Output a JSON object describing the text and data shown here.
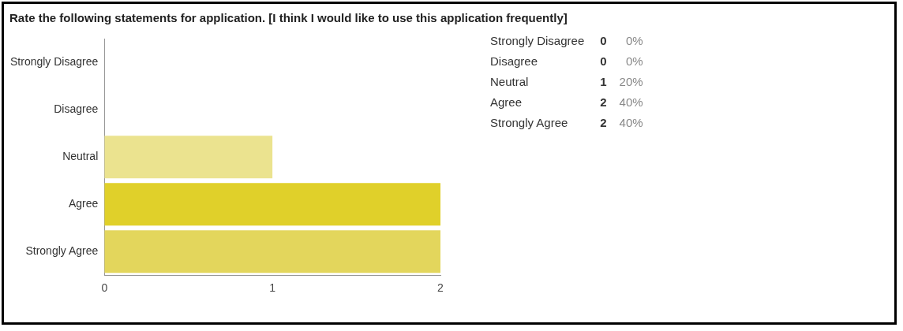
{
  "chart_data": {
    "type": "bar",
    "orientation": "horizontal",
    "title": "Rate the following statements for application. [I think I would like to use this application frequently]",
    "categories": [
      "Strongly Disagree",
      "Disagree",
      "Neutral",
      "Agree",
      "Strongly Agree"
    ],
    "values": [
      0,
      0,
      1,
      2,
      2
    ],
    "colors": [
      "#e0d02a",
      "#e0d02a",
      "#ebe38f",
      "#e0d02a",
      "#e3d65c"
    ],
    "xlim": [
      0,
      2
    ],
    "xticks": [
      0,
      1,
      2
    ],
    "grid": false,
    "legend": false,
    "annotations": [
      "Strongly Disagree",
      "0",
      "0%",
      "Disagree",
      "0",
      "0%",
      "Neutral",
      "1",
      "20%",
      "Agree",
      "2",
      "40%",
      "Strongly Agree",
      "2",
      "40%"
    ]
  }
}
